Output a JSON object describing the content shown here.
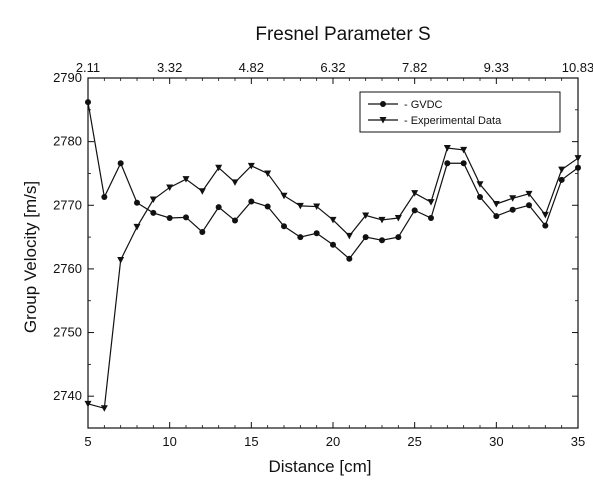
{
  "chart_data": {
    "type": "line",
    "title": "Fresnel Parameter S",
    "xlabel": "Distance [cm]",
    "ylabel": "Group Velocity [m/s]",
    "xlim": [
      5,
      35
    ],
    "ylim": [
      2735,
      2790
    ],
    "x_ticks": [
      "5",
      "10",
      "15",
      "20",
      "25",
      "30",
      "35"
    ],
    "y_ticks": [
      "2740",
      "2750",
      "2760",
      "2770",
      "2780",
      "2790"
    ],
    "top_ticks": [
      "2.11",
      "3.32",
      "4.82",
      "6.32",
      "7.82",
      "9.33",
      "10.83"
    ],
    "grid": false,
    "legend_position": "top-right",
    "x": [
      5,
      6,
      7,
      8,
      9,
      10,
      11,
      12,
      13,
      14,
      15,
      16,
      17,
      18,
      19,
      20,
      21,
      22,
      23,
      24,
      25,
      26,
      27,
      28,
      29,
      30,
      31,
      32,
      33,
      34,
      35
    ],
    "series": [
      {
        "name": "- GVDC",
        "marker": "circle",
        "color": "#111111",
        "values": [
          2786.2,
          2771.3,
          2776.6,
          2770.4,
          2768.8,
          2768.0,
          2768.1,
          2765.8,
          2769.7,
          2767.6,
          2770.6,
          2769.8,
          2766.7,
          2765.0,
          2765.6,
          2763.8,
          2761.6,
          2765.0,
          2764.5,
          2765.0,
          2769.2,
          2768.0,
          2776.6,
          2776.6,
          2771.3,
          2768.3,
          2769.3,
          2770.0,
          2766.8,
          2774.0,
          2775.9
        ]
      },
      {
        "name": "- Experimental Data",
        "marker": "triangle-down",
        "color": "#111111",
        "values": [
          2738.8,
          2738.1,
          2761.4,
          2766.6,
          2770.9,
          2772.8,
          2774.1,
          2772.2,
          2775.9,
          2773.6,
          2776.2,
          2775.0,
          2771.5,
          2769.9,
          2769.8,
          2767.7,
          2765.2,
          2768.4,
          2767.7,
          2768.0,
          2771.9,
          2770.5,
          2779.0,
          2778.7,
          2773.3,
          2770.2,
          2771.1,
          2771.8,
          2768.5,
          2775.6,
          2777.4
        ]
      }
    ]
  }
}
